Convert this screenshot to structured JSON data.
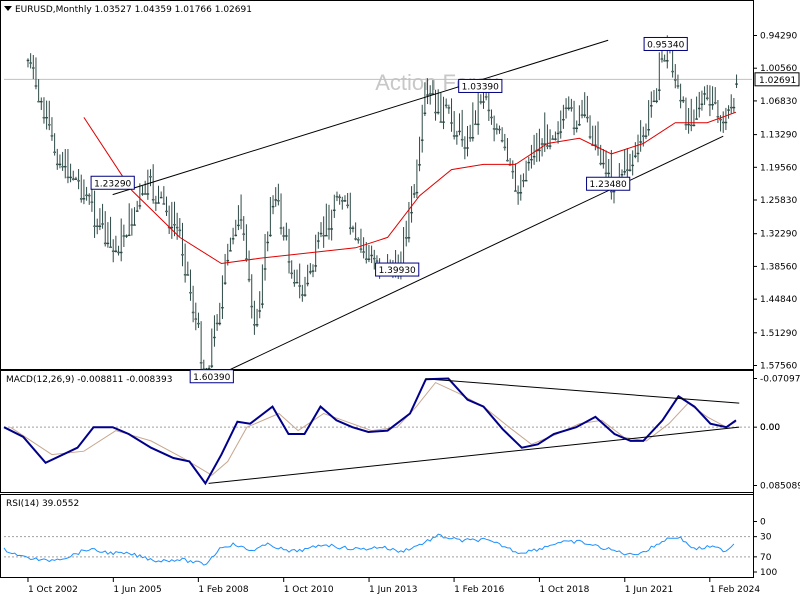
{
  "main_panel": {
    "header": "EURUSD,Monthly  1.03527 1.04359 1.01766 1.02691",
    "watermark": "Action Forex",
    "price_axis_labels": [
      "1.57560",
      "1.51290",
      "1.44840",
      "1.38560",
      "1.32290",
      "1.25830",
      "1.19560",
      "1.13290",
      "1.06830",
      "1.00560",
      "0.94290"
    ],
    "current_price_label": "1.02691",
    "pivot_labels": [
      "1.60390",
      "1.39930",
      "1.23290",
      "1.23480",
      "1.03390",
      "0.95340"
    ]
  },
  "macd_panel": {
    "header": "MACD(12,26,9) -0.008811 -0.008393",
    "axis_labels": [
      "0.085089",
      "0.00",
      "-0.070977"
    ]
  },
  "rsi_panel": {
    "header": "RSI(14) 39.0552",
    "axis_labels": [
      "100",
      "70",
      "30",
      "0"
    ]
  },
  "time_axis_labels": [
    "1 Oct 2002",
    "1 Jun 2005",
    "1 Feb 2008",
    "1 Oct 2010",
    "1 Jun 2013",
    "1 Feb 2016",
    "1 Oct 2018",
    "1 Jun 2021",
    "1 Feb 2024"
  ],
  "colors": {
    "candle": "#2e4a46",
    "moving_average": "#e00000",
    "trendline": "#000000",
    "macd_line": "#00008b",
    "signal_line": "#c8a890",
    "rsi_line": "#1e90ff",
    "level_line": "#a0a0a0",
    "price_line": "#c0c0c0"
  },
  "chart_data": [
    {
      "type": "candlestick",
      "symbol": "EURUSD",
      "timeframe": "Monthly",
      "ohlc_last": {
        "open": 1.03527,
        "high": 1.04359,
        "low": 1.01766,
        "close": 1.02691
      },
      "x": [
        2002.75,
        2003.5,
        2004.5,
        2005.4,
        2006.5,
        2007.5,
        2008.3,
        2008.9,
        2009.3,
        2009.9,
        2010.4,
        2010.9,
        2011.3,
        2012.5,
        2013.0,
        2013.8,
        2014.3,
        2014.9,
        2015.2,
        2015.9,
        2016.5,
        2017.0,
        2017.5,
        2018.0,
        2018.5,
        2019.5,
        2020.2,
        2020.5,
        2021.0,
        2021.5,
        2022.0,
        2022.5,
        2022.8,
        2023.2,
        2023.5,
        2023.8,
        2024.2,
        2024.6,
        2024.9
      ],
      "close": [
        0.99,
        1.15,
        1.24,
        1.36,
        1.23,
        1.32,
        1.59,
        1.4,
        1.27,
        1.5,
        1.23,
        1.36,
        1.44,
        1.23,
        1.35,
        1.38,
        1.39,
        1.22,
        1.05,
        1.1,
        1.14,
        1.04,
        1.14,
        1.24,
        1.16,
        1.1,
        1.1,
        1.14,
        1.22,
        1.19,
        1.14,
        1.0,
        0.96,
        1.09,
        1.09,
        1.06,
        1.08,
        1.11,
        1.027
      ],
      "moving_average": {
        "x": [
          2004.5,
          2006.0,
          2007.5,
          2008.8,
          2010.0,
          2011.5,
          2013.0,
          2014.0,
          2015.0,
          2016.0,
          2017.0,
          2018.0,
          2019.0,
          2020.0,
          2021.0,
          2022.0,
          2023.0,
          2024.0,
          2024.9
        ],
        "y": [
          1.1,
          1.24,
          1.33,
          1.38,
          1.37,
          1.36,
          1.35,
          1.33,
          1.25,
          1.2,
          1.19,
          1.19,
          1.15,
          1.14,
          1.17,
          1.15,
          1.11,
          1.11,
          1.09
        ]
      },
      "trendlines": [
        {
          "x": [
            2008.5,
            2024.5
          ],
          "y": [
            1.6,
            1.136
          ]
        },
        {
          "x": [
            2005.4,
            2020.9
          ],
          "y": [
            1.248,
            0.952
          ]
        }
      ],
      "pivots": [
        {
          "x": 2008.5,
          "y": 1.6039
        },
        {
          "x": 2014.3,
          "y": 1.3993
        },
        {
          "x": 2005.4,
          "y": 1.2329
        },
        {
          "x": 2020.9,
          "y": 1.2348
        },
        {
          "x": 2016.9,
          "y": 1.0339
        },
        {
          "x": 2022.7,
          "y": 0.9534
        }
      ],
      "current_price": 1.02691,
      "ylim": [
        0.9429,
        1.5756
      ]
    },
    {
      "type": "line",
      "indicator": "MACD(12,26,9)",
      "series": [
        {
          "name": "MACD",
          "x": [
            2002.0,
            2002.6,
            2003.3,
            2004.3,
            2004.8,
            2005.4,
            2005.9,
            2006.6,
            2007.3,
            2007.8,
            2008.3,
            2008.8,
            2009.3,
            2009.7,
            2010.4,
            2010.9,
            2011.4,
            2011.9,
            2012.4,
            2012.9,
            2013.4,
            2014.0,
            2014.7,
            2015.2,
            2015.9,
            2016.5,
            2017.0,
            2017.6,
            2018.2,
            2018.7,
            2019.2,
            2019.9,
            2020.5,
            2021.1,
            2021.6,
            2022.0,
            2022.6,
            2023.1,
            2023.6,
            2024.1,
            2024.6,
            2024.9
          ],
          "y": [
            0.0,
            0.014,
            0.052,
            0.03,
            0.0,
            0.0,
            0.01,
            0.03,
            0.045,
            0.05,
            0.082,
            0.04,
            -0.008,
            -0.005,
            -0.03,
            0.01,
            0.01,
            -0.03,
            -0.01,
            0.0,
            0.007,
            0.005,
            -0.02,
            -0.07,
            -0.071,
            -0.04,
            -0.03,
            0.003,
            0.03,
            0.025,
            0.01,
            0.0,
            -0.015,
            0.01,
            0.02,
            0.02,
            -0.01,
            -0.045,
            -0.03,
            -0.005,
            0.0,
            -0.01
          ]
        },
        {
          "name": "Signal",
          "x": [
            2002.2,
            2003.5,
            2004.5,
            2005.5,
            2006.6,
            2007.6,
            2008.5,
            2009.0,
            2009.6,
            2010.6,
            2011.2,
            2012.0,
            2012.6,
            2013.5,
            2014.3,
            2014.9,
            2015.5,
            2016.2,
            2017.0,
            2017.8,
            2018.5,
            2019.3,
            2020.0,
            2020.7,
            2021.4,
            2022.1,
            2022.8,
            2023.4,
            2024.0,
            2024.6,
            2024.9
          ],
          "y": [
            0.0,
            0.04,
            0.035,
            0.005,
            0.02,
            0.045,
            0.07,
            0.05,
            0.0,
            -0.02,
            0.005,
            -0.02,
            -0.01,
            0.005,
            0.0,
            -0.03,
            -0.065,
            -0.05,
            -0.03,
            0.0,
            0.025,
            0.01,
            -0.005,
            -0.01,
            0.015,
            0.02,
            -0.005,
            -0.035,
            -0.015,
            0.0,
            -0.008
          ]
        }
      ],
      "trendlines": [
        {
          "x": [
            2008.4,
            2025.0
          ],
          "y": [
            0.082,
            0.0
          ]
        },
        {
          "x": [
            2015.2,
            2025.0
          ],
          "y": [
            -0.0705,
            -0.035
          ]
        }
      ],
      "ylim": [
        -0.070977,
        0.085089
      ]
    },
    {
      "type": "line",
      "indicator": "RSI(14)",
      "series": [
        {
          "name": "RSI",
          "x": [
            2002.0,
            2002.6,
            2003.3,
            2004.0,
            2004.6,
            2005.3,
            2006.0,
            2006.8,
            2007.5,
            2008.3,
            2008.8,
            2009.2,
            2009.7,
            2010.3,
            2010.9,
            2011.5,
            2012.0,
            2012.6,
            2013.2,
            2013.8,
            2014.4,
            2015.0,
            2015.6,
            2016.3,
            2017.0,
            2017.6,
            2018.1,
            2018.7,
            2019.3,
            2020.0,
            2020.6,
            2021.1,
            2021.6,
            2022.1,
            2022.7,
            2023.1,
            2023.6,
            2024.1,
            2024.6,
            2024.9
          ],
          "y": [
            55,
            70,
            78,
            70,
            55,
            62,
            65,
            78,
            75,
            85,
            50,
            45,
            58,
            45,
            60,
            55,
            45,
            52,
            55,
            50,
            60,
            46,
            28,
            38,
            36,
            48,
            62,
            55,
            42,
            40,
            50,
            58,
            66,
            58,
            35,
            30,
            55,
            50,
            58,
            39.0552
          ]
        }
      ],
      "levels": [
        70,
        30
      ],
      "ylim": [
        0,
        100
      ]
    }
  ]
}
